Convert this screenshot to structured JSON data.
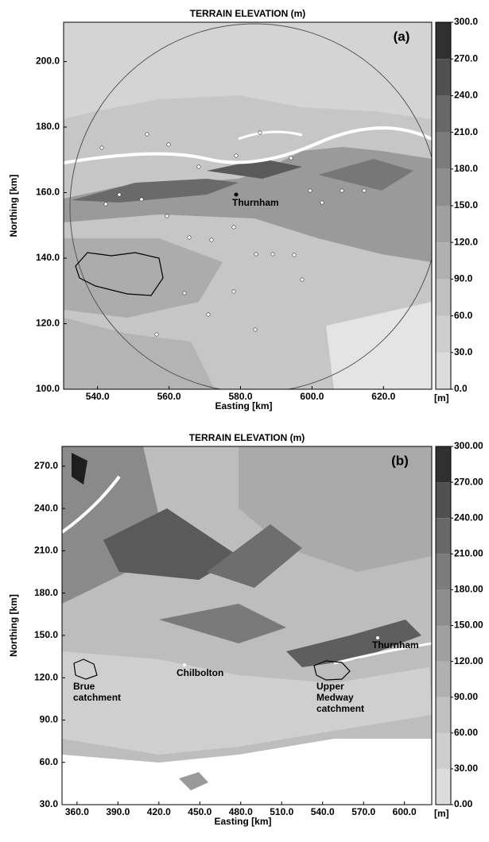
{
  "panels": [
    {
      "title": "TERRAIN ELEVATION (m)",
      "label": "(a)",
      "x_label": "Easting [km]",
      "y_label": "Northing [km]",
      "xlim": [
        530.5,
        633.5
      ],
      "ylim": [
        100,
        212
      ],
      "xticks": [
        {
          "value": 540,
          "label": "540.0"
        },
        {
          "value": 560,
          "label": "560.0"
        },
        {
          "value": 580,
          "label": "580.0"
        },
        {
          "value": 600,
          "label": "600.0"
        },
        {
          "value": 620,
          "label": "620.0"
        }
      ],
      "yticks": [
        {
          "value": 100,
          "label": "100.0"
        },
        {
          "value": 120,
          "label": "120.0"
        },
        {
          "value": 140,
          "label": "140.0"
        },
        {
          "value": 160,
          "label": "160.0"
        },
        {
          "value": 180,
          "label": "180.0"
        },
        {
          "value": 200,
          "label": "200.0"
        }
      ],
      "colorbar": {
        "unit": "[m]",
        "ticks": [
          {
            "value": 0,
            "label": "0.0"
          },
          {
            "value": 30,
            "label": "30.0"
          },
          {
            "value": 60,
            "label": "60.0"
          },
          {
            "value": 90,
            "label": "90.0"
          },
          {
            "value": 120,
            "label": "120.0"
          },
          {
            "value": 150,
            "label": "150.0"
          },
          {
            "value": 180,
            "label": "180.0"
          },
          {
            "value": 210,
            "label": "210.0"
          },
          {
            "value": 240,
            "label": "240.0"
          },
          {
            "value": 270,
            "label": "270.0"
          },
          {
            "value": 300,
            "label": "300.0"
          }
        ],
        "colors": [
          "#dcdcdc",
          "#cecece",
          "#c0c0c0",
          "#b0b0b0",
          "#a0a0a0",
          "#8e8e8e",
          "#7c7c7c",
          "#686868",
          "#505050",
          "#303030"
        ]
      },
      "places": [
        "Thurnham"
      ]
    },
    {
      "title": "TERRAIN ELEVATION (m)",
      "label": "(b)",
      "x_label": "Easting [km]",
      "y_label": "Northing [km]",
      "xlim": [
        349,
        620
      ],
      "ylim": [
        30,
        284
      ],
      "xticks": [
        {
          "value": 360,
          "label": "360.0"
        },
        {
          "value": 390,
          "label": "390.0"
        },
        {
          "value": 420,
          "label": "420.0"
        },
        {
          "value": 450,
          "label": "450.0"
        },
        {
          "value": 480,
          "label": "480.0"
        },
        {
          "value": 510,
          "label": "510.0"
        },
        {
          "value": 540,
          "label": "540.0"
        },
        {
          "value": 570,
          "label": "570.0"
        },
        {
          "value": 600,
          "label": "600.0"
        }
      ],
      "yticks": [
        {
          "value": 30,
          "label": "30.0"
        },
        {
          "value": 60,
          "label": "60.0"
        },
        {
          "value": 90,
          "label": "90.0"
        },
        {
          "value": 120,
          "label": "120.0"
        },
        {
          "value": 150,
          "label": "150.0"
        },
        {
          "value": 180,
          "label": "180.0"
        },
        {
          "value": 210,
          "label": "210.0"
        },
        {
          "value": 240,
          "label": "240.0"
        },
        {
          "value": 270,
          "label": "270.0"
        }
      ],
      "colorbar": {
        "unit": "[m]",
        "ticks": [
          {
            "value": 0,
            "label": "0.00"
          },
          {
            "value": 30,
            "label": "30.00"
          },
          {
            "value": 60,
            "label": "60.00"
          },
          {
            "value": 90,
            "label": "90.00"
          },
          {
            "value": 120,
            "label": "120.00"
          },
          {
            "value": 150,
            "label": "150.00"
          },
          {
            "value": 180,
            "label": "180.00"
          },
          {
            "value": 210,
            "label": "210.00"
          },
          {
            "value": 240,
            "label": "240.00"
          },
          {
            "value": 270,
            "label": "270.00"
          },
          {
            "value": 300,
            "label": "300.00"
          }
        ],
        "colors": [
          "#dcdcdc",
          "#cecece",
          "#c0c0c0",
          "#b0b0b0",
          "#a0a0a0",
          "#8e8e8e",
          "#7c7c7c",
          "#686868",
          "#505050",
          "#303030"
        ]
      },
      "places": [
        "Thurnham",
        "Chilbolton",
        "Brue\ncatchment",
        "Upper\nMedway\ncatchment"
      ]
    }
  ]
}
